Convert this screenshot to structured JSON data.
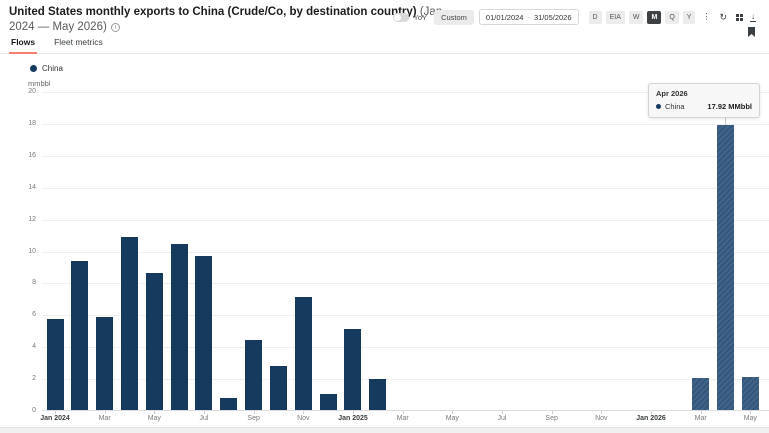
{
  "header": {
    "title": "United States monthly exports to China (Crude/Co, by destination country)",
    "range": "(Jan 2024 — May 2026)"
  },
  "tabs": [
    {
      "label": "Flows",
      "active": true
    },
    {
      "label": "Fleet metrics",
      "active": false
    }
  ],
  "toolbar": {
    "yoy_label": "YoY",
    "yoy_enabled": false,
    "custom_label": "Custom",
    "date_range": {
      "from": "01/01/2024",
      "separator": "-",
      "to": "31/05/2026"
    },
    "granularity": [
      {
        "label": "D",
        "selected": false
      },
      {
        "label": "EIA",
        "selected": false
      },
      {
        "label": "W",
        "selected": false
      },
      {
        "label": "M",
        "selected": true
      },
      {
        "label": "Q",
        "selected": false
      },
      {
        "label": "Y",
        "selected": false
      }
    ],
    "icons": [
      "kebab-menu-icon",
      "refresh-icon",
      "layout-grid-icon",
      "download-icon",
      "bookmark-icon"
    ]
  },
  "legend": {
    "items": [
      {
        "label": "China",
        "color": "#16395e"
      }
    ]
  },
  "chart_data": {
    "type": "bar",
    "title": "United States monthly exports to China (Crude/Co, by destination country)",
    "ylabel": "mmbbl",
    "ylim": [
      0,
      20
    ],
    "ytick_step": 2,
    "grid": true,
    "legend_position": "top-left",
    "x": [
      "Jan 2024",
      "Feb 2024",
      "Mar 2024",
      "Apr 2024",
      "May 2024",
      "Jun 2024",
      "Jul 2024",
      "Aug 2024",
      "Sep 2024",
      "Oct 2024",
      "Nov 2024",
      "Dec 2024",
      "Jan 2025",
      "Feb 2025",
      "Mar 2025",
      "Apr 2025",
      "May 2025",
      "Jun 2025",
      "Jul 2025",
      "Aug 2025",
      "Sep 2025",
      "Oct 2025",
      "Nov 2025",
      "Dec 2025",
      "Jan 2026",
      "Feb 2026",
      "Mar 2026",
      "Apr 2026",
      "May 2026"
    ],
    "series": [
      {
        "name": "China",
        "color": "#16395e",
        "values": [
          5.8,
          9.4,
          5.9,
          10.93,
          8.65,
          10.45,
          9.7,
          0.8,
          4.45,
          2.8,
          7.15,
          1.05,
          5.15,
          2.0,
          0,
          0,
          0,
          0,
          0,
          0,
          0,
          0,
          0,
          0,
          0,
          0,
          2.1,
          17.92,
          2.15
        ]
      }
    ],
    "forecast_start_index": 26,
    "highlight_index": 27,
    "xticks": [
      {
        "i": 0,
        "label": "Jan 2024",
        "bold": true
      },
      {
        "i": 2,
        "label": "Mar"
      },
      {
        "i": 4,
        "label": "May"
      },
      {
        "i": 6,
        "label": "Jul"
      },
      {
        "i": 8,
        "label": "Sep"
      },
      {
        "i": 10,
        "label": "Nov"
      },
      {
        "i": 12,
        "label": "Jan 2025",
        "bold": true
      },
      {
        "i": 14,
        "label": "Mar"
      },
      {
        "i": 16,
        "label": "May"
      },
      {
        "i": 18,
        "label": "Jul"
      },
      {
        "i": 20,
        "label": "Sep"
      },
      {
        "i": 22,
        "label": "Nov"
      },
      {
        "i": 24,
        "label": "Jan 2026",
        "bold": true
      },
      {
        "i": 26,
        "label": "Mar"
      },
      {
        "i": 28,
        "label": "May"
      }
    ]
  },
  "tooltip": {
    "title": "Apr 2026",
    "series": "China",
    "value": "17.92 MMbbl"
  },
  "colors": {
    "bar": "#16395e",
    "bar_forecast": "#3d6084",
    "tab_accent": "#f5806c",
    "selected_button_bg": "#3e4144"
  }
}
